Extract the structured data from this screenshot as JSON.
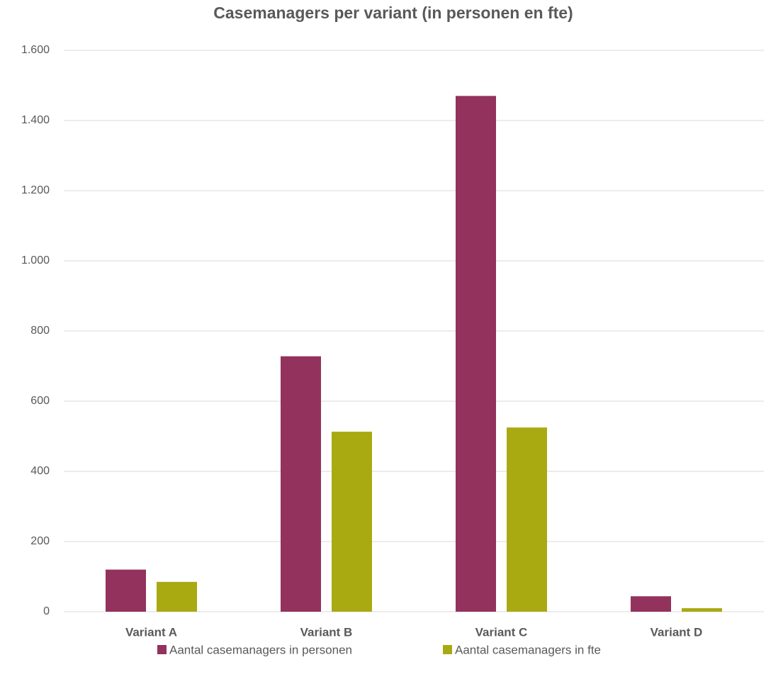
{
  "chart_data": {
    "type": "bar",
    "title": "Casemanagers per variant (in personen en fte)",
    "categories": [
      "Variant A",
      "Variant B",
      "Variant C",
      "Variant D"
    ],
    "series": [
      {
        "name": "Aantal casemanagers in personen",
        "color": "#93325c",
        "values": [
          120,
          728,
          1470,
          44
        ]
      },
      {
        "name": "Aantal casemanagers in fte",
        "color": "#a9aa12",
        "values": [
          85,
          513,
          525,
          10
        ]
      }
    ],
    "ylim": [
      0,
      1600
    ],
    "yticks": [
      0,
      200,
      400,
      600,
      800,
      {
        "value": 1000,
        "label": "1.000"
      },
      {
        "value": 1200,
        "label": "1.200"
      },
      {
        "value": 1400,
        "label": "1.400"
      },
      {
        "value": 1600,
        "label": "1.600"
      }
    ],
    "grid": true,
    "legend": "bottom"
  }
}
